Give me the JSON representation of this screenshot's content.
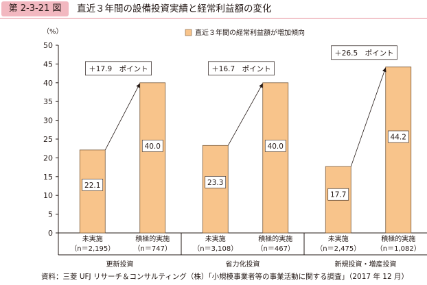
{
  "figure": {
    "number": "第 2-3-21 図",
    "title": "直近３年間の設備投資実績と経常利益額の変化",
    "source": "資料：三菱 UFJ リサーチ＆コンサルティング（株）「小規模事業者等の事業活動に関する調査」（2017 年 12 月）"
  },
  "colors": {
    "bar": "#f8c48b",
    "bar_stroke": "#7a5a3a",
    "badge": "#f2b8c0"
  },
  "chart_data": {
    "type": "bar",
    "unit_label": "（%）",
    "ylim": [
      0,
      50
    ],
    "yticks": [
      0,
      5,
      10,
      15,
      20,
      25,
      30,
      35,
      40,
      45,
      50
    ],
    "legend": {
      "label": "直近３年間の経常利益額が増加傾向",
      "position": "top-right"
    },
    "grid": false,
    "groups": [
      {
        "name": "更新投資",
        "diff_label": "＋17.9　ポイント",
        "bars": [
          {
            "label": "未実施",
            "n": "（n＝2,195）",
            "value": 22.1,
            "value_label": "22.1"
          },
          {
            "label": "積極的実施",
            "n": "（n＝747）",
            "value": 40.0,
            "value_label": "40.0"
          }
        ]
      },
      {
        "name": "省力化投資",
        "diff_label": "＋16.7　ポイント",
        "bars": [
          {
            "label": "未実施",
            "n": "（n＝3,108）",
            "value": 23.3,
            "value_label": "23.3"
          },
          {
            "label": "積極的実施",
            "n": "（n＝467）",
            "value": 40.0,
            "value_label": "40.0"
          }
        ]
      },
      {
        "name": "新規投資・増産投資",
        "diff_label": "＋26.5　ポイント",
        "bars": [
          {
            "label": "未実施",
            "n": "（n＝2,475）",
            "value": 17.7,
            "value_label": "17.7"
          },
          {
            "label": "積極的実施",
            "n": "（n＝1,082）",
            "value": 44.2,
            "value_label": "44.2"
          }
        ]
      }
    ]
  }
}
